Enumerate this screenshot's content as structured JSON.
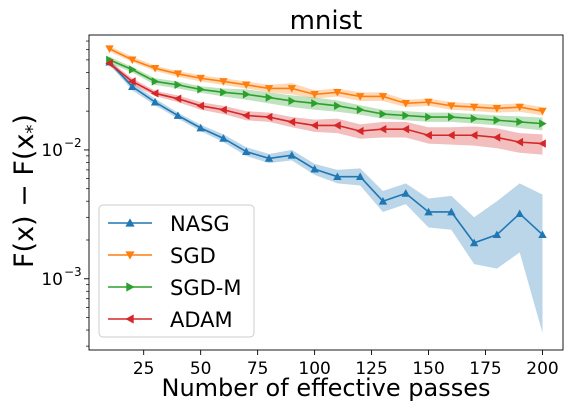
{
  "chart_data": {
    "type": "line",
    "title": "mnist",
    "xlabel": "Number of effective passes",
    "ylabel": "F(x) − F(x*)",
    "ylabel_main": "F(x) − F(x",
    "ylabel_sub": "*",
    "ylabel_close": ")",
    "yscale": "log",
    "xlim": [
      1,
      209
    ],
    "ylim": [
      0.00028,
      0.078
    ],
    "x_ticks": [
      25,
      50,
      75,
      100,
      125,
      150,
      175,
      200
    ],
    "y_ticks": [
      {
        "value": 0.01,
        "base": "10",
        "exp": "−2"
      },
      {
        "value": 0.001,
        "base": "10",
        "exp": "−3"
      }
    ],
    "legend_position": "lower-left",
    "x": [
      10,
      20,
      30,
      40,
      50,
      60,
      70,
      80,
      90,
      100,
      110,
      120,
      130,
      140,
      150,
      160,
      170,
      180,
      190,
      200
    ],
    "series": [
      {
        "name": "NASG",
        "color": "#1f77b4",
        "marker": "triangle-up",
        "values": [
          0.048,
          0.031,
          0.0235,
          0.0185,
          0.0148,
          0.0123,
          0.0097,
          0.0086,
          0.0091,
          0.0071,
          0.0062,
          0.0062,
          0.004,
          0.0046,
          0.0033,
          0.0033,
          0.0019,
          0.0022,
          0.0032,
          0.0022
        ],
        "band_low": [
          0.046,
          0.029,
          0.0222,
          0.0175,
          0.014,
          0.0115,
          0.009,
          0.0079,
          0.0083,
          0.0064,
          0.0055,
          0.0053,
          0.0033,
          0.0038,
          0.0025,
          0.0024,
          0.0013,
          0.0012,
          0.0016,
          0.00038
        ],
        "band_high": [
          0.05,
          0.033,
          0.025,
          0.0195,
          0.0157,
          0.0132,
          0.0105,
          0.0093,
          0.01,
          0.0078,
          0.007,
          0.0072,
          0.0048,
          0.0055,
          0.0042,
          0.0044,
          0.003,
          0.004,
          0.0055,
          0.0045
        ]
      },
      {
        "name": "SGD",
        "color": "#ff7f0e",
        "marker": "triangle-down",
        "values": [
          0.061,
          0.05,
          0.043,
          0.039,
          0.036,
          0.034,
          0.032,
          0.03,
          0.03,
          0.027,
          0.028,
          0.026,
          0.026,
          0.023,
          0.0235,
          0.022,
          0.0215,
          0.021,
          0.0215,
          0.02
        ],
        "band_low": [
          0.058,
          0.048,
          0.041,
          0.037,
          0.034,
          0.032,
          0.03,
          0.028,
          0.027,
          0.025,
          0.026,
          0.024,
          0.024,
          0.0215,
          0.022,
          0.0205,
          0.02,
          0.0195,
          0.0198,
          0.0185
        ],
        "band_high": [
          0.064,
          0.053,
          0.045,
          0.041,
          0.038,
          0.036,
          0.034,
          0.032,
          0.033,
          0.029,
          0.03,
          0.028,
          0.028,
          0.0245,
          0.025,
          0.0235,
          0.023,
          0.0225,
          0.023,
          0.0215
        ]
      },
      {
        "name": "SGD-M",
        "color": "#2ca02c",
        "marker": "triangle-right",
        "values": [
          0.05,
          0.042,
          0.034,
          0.032,
          0.0295,
          0.028,
          0.027,
          0.0255,
          0.024,
          0.023,
          0.022,
          0.0205,
          0.019,
          0.0185,
          0.018,
          0.018,
          0.0175,
          0.017,
          0.0165,
          0.016
        ],
        "band_low": [
          0.047,
          0.04,
          0.032,
          0.03,
          0.0278,
          0.026,
          0.0245,
          0.023,
          0.0215,
          0.0205,
          0.0198,
          0.0188,
          0.0175,
          0.017,
          0.0165,
          0.0165,
          0.016,
          0.0155,
          0.0148,
          0.0142
        ],
        "band_high": [
          0.053,
          0.044,
          0.036,
          0.034,
          0.0312,
          0.03,
          0.0295,
          0.028,
          0.0265,
          0.0255,
          0.0242,
          0.0222,
          0.0205,
          0.02,
          0.0195,
          0.0195,
          0.019,
          0.0185,
          0.0182,
          0.0178
        ]
      },
      {
        "name": "ADAM",
        "color": "#d62728",
        "marker": "triangle-left",
        "values": [
          0.047,
          0.034,
          0.0275,
          0.025,
          0.022,
          0.0205,
          0.0185,
          0.018,
          0.0165,
          0.0155,
          0.0155,
          0.014,
          0.0145,
          0.0145,
          0.013,
          0.013,
          0.013,
          0.0125,
          0.0115,
          0.0112
        ],
        "band_low": [
          0.045,
          0.032,
          0.0262,
          0.0235,
          0.0205,
          0.019,
          0.017,
          0.0165,
          0.015,
          0.0138,
          0.0135,
          0.0122,
          0.0125,
          0.0125,
          0.0112,
          0.011,
          0.0108,
          0.0103,
          0.0095,
          0.0092
        ],
        "band_high": [
          0.049,
          0.036,
          0.0288,
          0.0265,
          0.0235,
          0.022,
          0.02,
          0.0195,
          0.018,
          0.0172,
          0.0175,
          0.0158,
          0.0165,
          0.0165,
          0.015,
          0.015,
          0.0152,
          0.0147,
          0.0135,
          0.0132
        ]
      }
    ]
  }
}
